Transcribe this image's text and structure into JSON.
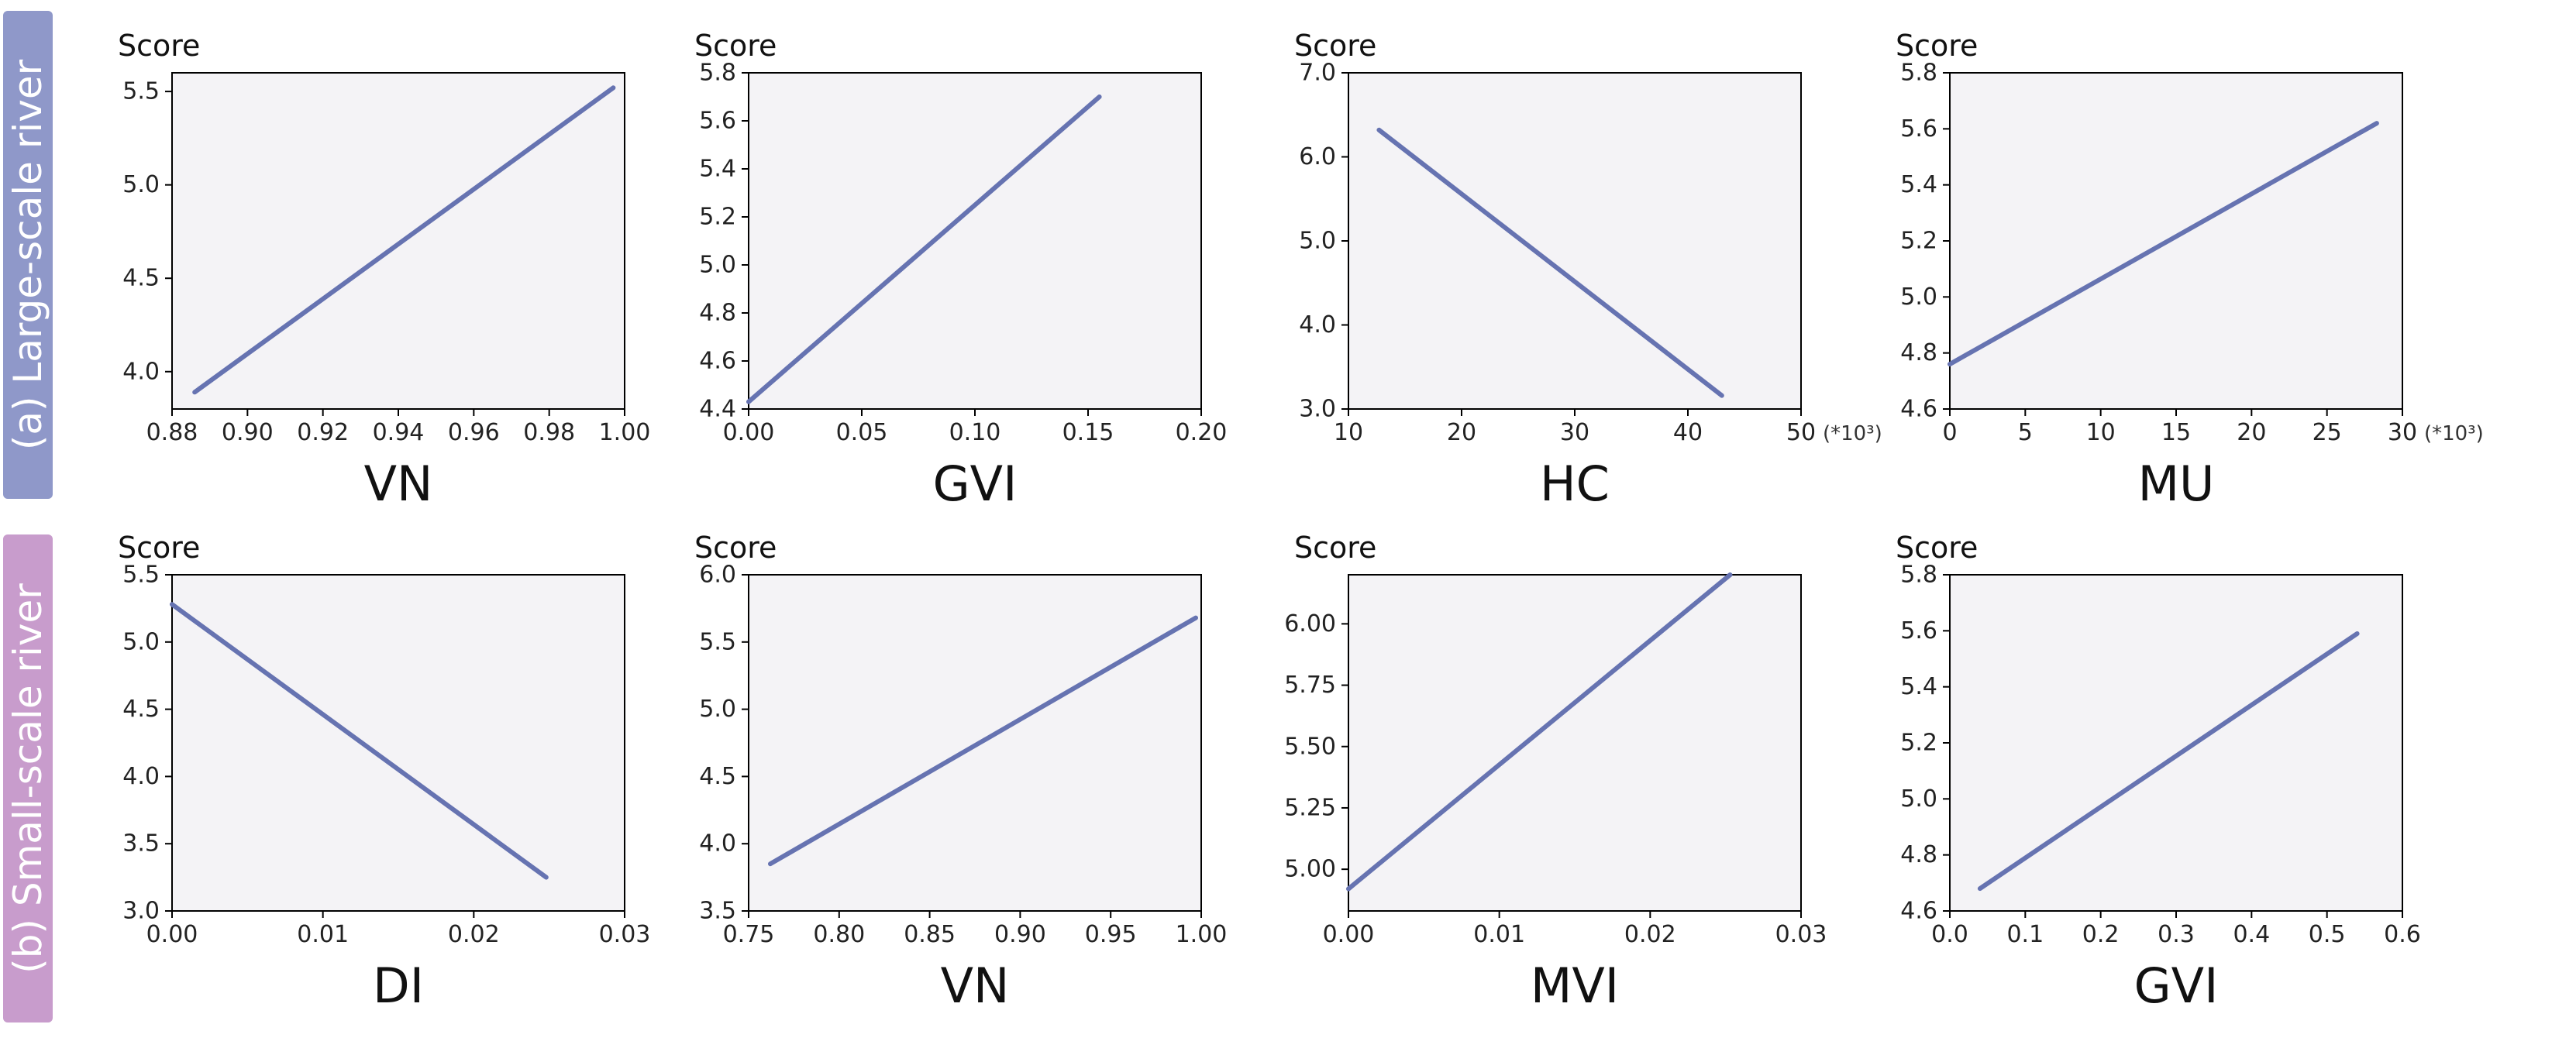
{
  "figure": {
    "row_labels": [
      "(a) Large-scale river",
      "(b) Small-scale river"
    ],
    "row_colors": [
      "#8f98c9",
      "#c89ccc"
    ],
    "line_color": "#6673b1"
  },
  "chart_data": [
    {
      "type": "line",
      "row": 0,
      "col": 0,
      "ylabel": "Score",
      "xlabel": "VN",
      "unit": "",
      "xlim": [
        0.88,
        1.0
      ],
      "ylim": [
        3.8,
        5.6
      ],
      "xticks": [
        "0.88",
        "0.90",
        "0.92",
        "0.94",
        "0.96",
        "0.98",
        "1.00"
      ],
      "yticks": [
        "4.0",
        "4.5",
        "5.0",
        "5.5"
      ],
      "x": [
        0.886,
        0.997
      ],
      "y": [
        3.89,
        5.52
      ]
    },
    {
      "type": "line",
      "row": 0,
      "col": 1,
      "ylabel": "Score",
      "xlabel": "GVI",
      "unit": "",
      "xlim": [
        0.0,
        0.2
      ],
      "ylim": [
        4.4,
        5.8
      ],
      "xticks": [
        "0.00",
        "0.05",
        "0.10",
        "0.15",
        "0.20"
      ],
      "yticks": [
        "4.4",
        "4.6",
        "4.8",
        "5.0",
        "5.2",
        "5.4",
        "5.6",
        "5.8"
      ],
      "x": [
        0.0,
        0.155
      ],
      "y": [
        4.43,
        5.7
      ]
    },
    {
      "type": "line",
      "row": 0,
      "col": 2,
      "ylabel": "Score",
      "xlabel": "HC",
      "unit": "(*10³)",
      "xlim": [
        10,
        50
      ],
      "ylim": [
        3.0,
        7.0
      ],
      "xticks": [
        "10",
        "20",
        "30",
        "40",
        "50"
      ],
      "yticks": [
        "3.0",
        "4.0",
        "5.0",
        "6.0",
        "7.0"
      ],
      "x": [
        12.7,
        43.0
      ],
      "y": [
        6.32,
        3.16
      ]
    },
    {
      "type": "line",
      "row": 0,
      "col": 3,
      "ylabel": "Score",
      "xlabel": "MU",
      "unit": "(*10³)",
      "xlim": [
        0,
        30
      ],
      "ylim": [
        4.6,
        5.8
      ],
      "xticks": [
        "0",
        "5",
        "10",
        "15",
        "20",
        "25",
        "30"
      ],
      "yticks": [
        "4.6",
        "4.8",
        "5.0",
        "5.2",
        "5.4",
        "5.6",
        "5.8"
      ],
      "x": [
        0.0,
        28.3
      ],
      "y": [
        4.76,
        5.62
      ]
    },
    {
      "type": "line",
      "row": 1,
      "col": 0,
      "ylabel": "Score",
      "xlabel": "DI",
      "unit": "",
      "xlim": [
        0.0,
        0.03
      ],
      "ylim": [
        3.0,
        5.5
      ],
      "xticks": [
        "0.00",
        "0.01",
        "0.02",
        "0.03"
      ],
      "yticks": [
        "3.0",
        "3.5",
        "4.0",
        "4.5",
        "5.0",
        "5.5"
      ],
      "x": [
        0.0,
        0.0248
      ],
      "y": [
        5.28,
        3.25
      ]
    },
    {
      "type": "line",
      "row": 1,
      "col": 1,
      "ylabel": "Score",
      "xlabel": "VN",
      "unit": "",
      "xlim": [
        0.75,
        1.0
      ],
      "ylim": [
        3.5,
        6.0
      ],
      "xticks": [
        "0.75",
        "0.80",
        "0.85",
        "0.90",
        "0.95",
        "1.00"
      ],
      "yticks": [
        "3.5",
        "4.0",
        "4.5",
        "5.0",
        "5.5",
        "6.0"
      ],
      "x": [
        0.762,
        0.997
      ],
      "y": [
        3.85,
        5.68
      ]
    },
    {
      "type": "line",
      "row": 1,
      "col": 2,
      "ylabel": "Score",
      "xlabel": "MVI",
      "unit": "",
      "xlim": [
        0.0,
        0.03
      ],
      "ylim": [
        4.83,
        6.2
      ],
      "xticks": [
        "0.00",
        "0.01",
        "0.02",
        "0.03"
      ],
      "yticks": [
        "5.00",
        "5.25",
        "5.50",
        "5.75",
        "6.00"
      ],
      "x": [
        0.0,
        0.0253
      ],
      "y": [
        4.92,
        6.2
      ]
    },
    {
      "type": "line",
      "row": 1,
      "col": 3,
      "ylabel": "Score",
      "xlabel": "GVI",
      "unit": "",
      "xlim": [
        0.0,
        0.6
      ],
      "ylim": [
        4.6,
        5.8
      ],
      "xticks": [
        "0.0",
        "0.1",
        "0.2",
        "0.3",
        "0.4",
        "0.5",
        "0.6"
      ],
      "yticks": [
        "4.6",
        "4.8",
        "5.0",
        "5.2",
        "5.4",
        "5.6",
        "5.8"
      ],
      "x": [
        0.04,
        0.54
      ],
      "y": [
        4.68,
        5.59
      ]
    }
  ]
}
